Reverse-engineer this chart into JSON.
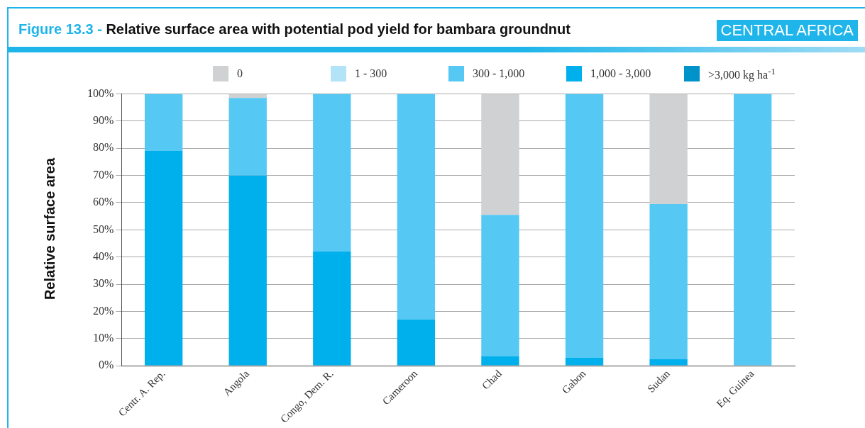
{
  "chart_data": {
    "type": "bar",
    "title": "Figure 13.3 - Relative surface area with potential pod yield for bambara groundnut",
    "subtitle": "CENTRAL AFRICA",
    "ylabel": "Relative surface area",
    "categories": [
      "Centr. A. Rep.",
      "Angola",
      "Congo, Dem. R.",
      "Cameroon",
      "Chad",
      "Gabon",
      "Sudan",
      "Eq. Guinea"
    ],
    "stacked": true,
    "series": [
      {
        "name": ">3,000 kg ha$^{-1}$",
        "color": "#0093c9",
        "values": [
          0,
          0,
          0,
          0,
          0,
          0,
          0,
          0
        ]
      },
      {
        "name": "1,000 - 3,000",
        "color": "#00b0ec",
        "values": [
          79,
          70,
          42,
          17,
          3.5,
          3,
          2.5,
          0
        ]
      },
      {
        "name": "300 - 1,000",
        "color": "#55c9f4",
        "values": [
          21,
          28.5,
          58,
          83,
          52,
          97,
          57,
          100
        ]
      },
      {
        "name": "1 - 300",
        "color": "#b3e3f7",
        "values": [
          0,
          0,
          0,
          0,
          0,
          0,
          0,
          0
        ]
      },
      {
        "name": "0",
        "color": "#d0d1d3",
        "values": [
          0,
          1.5,
          0,
          0,
          44.5,
          0,
          40.5,
          0
        ]
      }
    ],
    "ylim": [
      0,
      100
    ],
    "yticks": [
      {
        "value": 0,
        "label": "0%"
      },
      {
        "value": 10,
        "label": "10%"
      },
      {
        "value": 20,
        "label": "20%"
      },
      {
        "value": 30,
        "label": "30%"
      },
      {
        "value": 40,
        "label": "40%"
      },
      {
        "value": 50,
        "label": "50%"
      },
      {
        "value": 60,
        "label": "60%"
      },
      {
        "value": 70,
        "label": "70%"
      },
      {
        "value": 80,
        "label": "80%"
      },
      {
        "value": 90,
        "label": "90%"
      },
      {
        "value": 100,
        "label": "100%"
      }
    ],
    "grid": "y",
    "legend": "top"
  }
}
